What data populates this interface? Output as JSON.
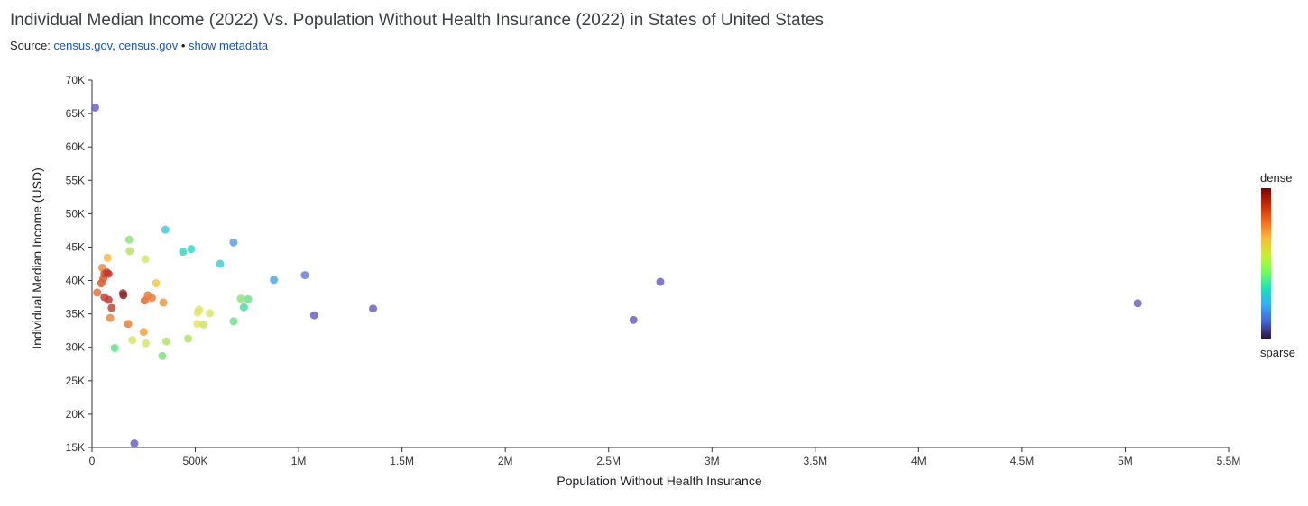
{
  "header": {
    "title": "Individual Median Income (2022) Vs. Population Without Health Insurance (2022) in States of United States",
    "source_prefix": "Source: ",
    "source_link_1": "census.gov",
    "source_sep": ", ",
    "source_link_2": "census.gov",
    "bullet": " • ",
    "metadata_link": "show metadata"
  },
  "legend": {
    "top_label": "dense",
    "bottom_label": "sparse"
  },
  "chart_data": {
    "type": "scatter",
    "title": "Individual Median Income (2022) Vs. Population Without Health Insurance (2022) in States of United States",
    "xlabel": "Population Without Health Insurance",
    "ylabel": "Individual Median Income (USD)",
    "xlim": [
      0,
      5500000
    ],
    "ylim": [
      15000,
      70000
    ],
    "x_ticks": [
      0,
      500000,
      1000000,
      1500000,
      2000000,
      2500000,
      3000000,
      3500000,
      4000000,
      4500000,
      5000000,
      5500000
    ],
    "x_tick_labels": [
      "0",
      "500K",
      "1M",
      "1.5M",
      "2M",
      "2.5M",
      "3M",
      "3.5M",
      "4M",
      "4.5M",
      "5M",
      "5.5M"
    ],
    "y_ticks": [
      15000,
      20000,
      25000,
      30000,
      35000,
      40000,
      45000,
      50000,
      55000,
      60000,
      65000,
      70000
    ],
    "y_tick_labels": [
      "15K",
      "20K",
      "25K",
      "30K",
      "35K",
      "40K",
      "45K",
      "50K",
      "55K",
      "60K",
      "65K",
      "70K"
    ],
    "color_scale": [
      "#30123b",
      "#4662d7",
      "#36aaf9",
      "#1ae4b6",
      "#72fe5e",
      "#c8ef34",
      "#faba39",
      "#f66b19",
      "#ca2a04",
      "#7a0403"
    ],
    "points": [
      {
        "x": 15000,
        "y": 65900,
        "color": "#6b63c3"
      },
      {
        "x": 25000,
        "y": 38200,
        "color": "#ea6c34"
      },
      {
        "x": 45000,
        "y": 39600,
        "color": "#da5a2f"
      },
      {
        "x": 50000,
        "y": 41900,
        "color": "#ed8a3b"
      },
      {
        "x": 55000,
        "y": 40300,
        "color": "#e05c2c"
      },
      {
        "x": 60000,
        "y": 41000,
        "color": "#d55130"
      },
      {
        "x": 60000,
        "y": 37500,
        "color": "#c9413c"
      },
      {
        "x": 72000,
        "y": 41200,
        "color": "#c44030"
      },
      {
        "x": 75000,
        "y": 43400,
        "color": "#f8b748"
      },
      {
        "x": 80000,
        "y": 41000,
        "color": "#bb3a33"
      },
      {
        "x": 80000,
        "y": 37100,
        "color": "#b64037"
      },
      {
        "x": 88000,
        "y": 34400,
        "color": "#ec8c40"
      },
      {
        "x": 95000,
        "y": 35900,
        "color": "#c44535"
      },
      {
        "x": 110000,
        "y": 29900,
        "color": "#5ee48a"
      },
      {
        "x": 150000,
        "y": 38100,
        "color": "#a1322d"
      },
      {
        "x": 152000,
        "y": 37800,
        "color": "#8b2a28"
      },
      {
        "x": 175000,
        "y": 33500,
        "color": "#ea7e3a"
      },
      {
        "x": 180000,
        "y": 46100,
        "color": "#8ce67a"
      },
      {
        "x": 182000,
        "y": 44400,
        "color": "#b6e36b"
      },
      {
        "x": 195000,
        "y": 31100,
        "color": "#d9e56b"
      },
      {
        "x": 205000,
        "y": 15600,
        "color": "#6b63c3"
      },
      {
        "x": 250000,
        "y": 32300,
        "color": "#f3a241"
      },
      {
        "x": 255000,
        "y": 37000,
        "color": "#e26b36"
      },
      {
        "x": 258000,
        "y": 43200,
        "color": "#d9e56b"
      },
      {
        "x": 260000,
        "y": 30600,
        "color": "#d9e56b"
      },
      {
        "x": 270000,
        "y": 37800,
        "color": "#ea7e3a"
      },
      {
        "x": 290000,
        "y": 37400,
        "color": "#ea7e3a"
      },
      {
        "x": 310000,
        "y": 39600,
        "color": "#f3c84a"
      },
      {
        "x": 340000,
        "y": 28700,
        "color": "#7ee27d"
      },
      {
        "x": 345000,
        "y": 36700,
        "color": "#ee9443"
      },
      {
        "x": 355000,
        "y": 47600,
        "color": "#45c8e6"
      },
      {
        "x": 360000,
        "y": 30900,
        "color": "#b2e36c"
      },
      {
        "x": 440000,
        "y": 44300,
        "color": "#3fd2c2"
      },
      {
        "x": 465000,
        "y": 31300,
        "color": "#b2e36c"
      },
      {
        "x": 480000,
        "y": 44700,
        "color": "#3fd6c8"
      },
      {
        "x": 510000,
        "y": 33500,
        "color": "#e6e36a"
      },
      {
        "x": 512000,
        "y": 35200,
        "color": "#e6e36a"
      },
      {
        "x": 518000,
        "y": 35600,
        "color": "#dfe26b"
      },
      {
        "x": 540000,
        "y": 33400,
        "color": "#cfe56b"
      },
      {
        "x": 570000,
        "y": 35100,
        "color": "#d9e56b"
      },
      {
        "x": 620000,
        "y": 42500,
        "color": "#3fd0cc"
      },
      {
        "x": 685000,
        "y": 45700,
        "color": "#5c9ee8"
      },
      {
        "x": 685000,
        "y": 33900,
        "color": "#6ddf8b"
      },
      {
        "x": 720000,
        "y": 37300,
        "color": "#8ce67a"
      },
      {
        "x": 735000,
        "y": 36000,
        "color": "#52d9a5"
      },
      {
        "x": 755000,
        "y": 37200,
        "color": "#6ddf8b"
      },
      {
        "x": 880000,
        "y": 40100,
        "color": "#4fa6ec"
      },
      {
        "x": 1030000,
        "y": 40800,
        "color": "#6680df"
      },
      {
        "x": 1075000,
        "y": 34800,
        "color": "#6b63c3"
      },
      {
        "x": 1360000,
        "y": 35800,
        "color": "#6b63c3"
      },
      {
        "x": 2620000,
        "y": 34100,
        "color": "#6b63c3"
      },
      {
        "x": 2750000,
        "y": 39800,
        "color": "#6b63c3"
      },
      {
        "x": 5060000,
        "y": 36600,
        "color": "#6b63c3"
      }
    ]
  }
}
